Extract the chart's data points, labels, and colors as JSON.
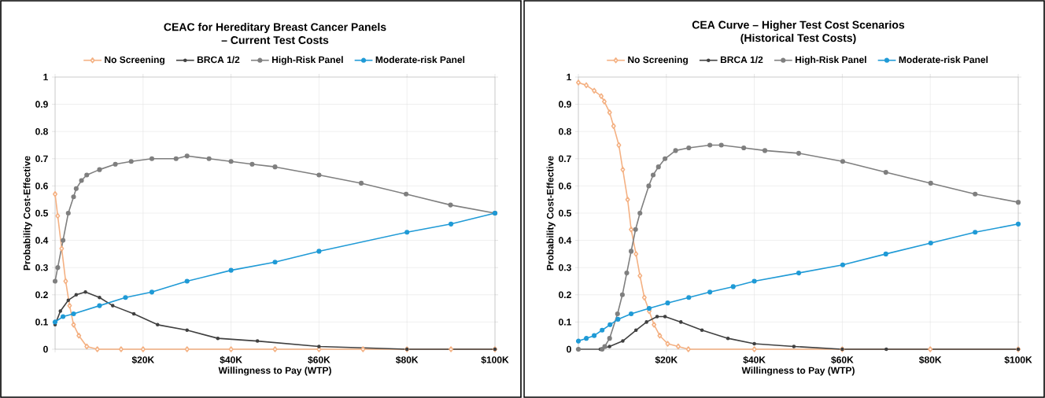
{
  "chart_data": [
    {
      "type": "line",
      "title": "CEAC for Hereditary Breast Cancer Panels",
      "subtitle": "– Current Test Costs",
      "xlabel": "Willingness to Pay (WTP)",
      "ylabel": "Probability Cost-Effective",
      "xlim": [
        0,
        100000
      ],
      "ylim": [
        0,
        1
      ],
      "xticks": [
        {
          "value": 0,
          "label": null
        },
        {
          "value": 20000,
          "label": "$20K"
        },
        {
          "value": 40000,
          "label": "$40K"
        },
        {
          "value": 60000,
          "label": "$60K"
        },
        {
          "value": 80000,
          "label": "$80K"
        },
        {
          "value": 100000,
          "label": "$100K"
        }
      ],
      "yticks": [
        0,
        0.1,
        0.2,
        0.3,
        0.4,
        0.5,
        0.6,
        0.7,
        0.8,
        0.9,
        1
      ],
      "grid": true,
      "legend": "top",
      "series": [
        {
          "name": "No Screening",
          "color": "#f4b183",
          "marker": "diamond",
          "x": [
            0,
            600,
            1500,
            2400,
            3300,
            4200,
            5400,
            7200,
            9600,
            15000,
            20000,
            30000,
            40000,
            50000,
            60000,
            70000,
            80000,
            90000,
            100000
          ],
          "values": [
            0.57,
            0.49,
            0.37,
            0.25,
            0.16,
            0.09,
            0.05,
            0.01,
            0,
            0,
            0,
            0,
            0,
            0,
            0,
            0,
            0,
            0,
            0
          ]
        },
        {
          "name": "BRCA 1/2",
          "color": "#404040",
          "marker": "circle",
          "x": [
            0,
            1200,
            3000,
            4800,
            6900,
            10100,
            13100,
            17900,
            23300,
            30000,
            37000,
            46000,
            60000,
            80000,
            100000
          ],
          "values": [
            0.09,
            0.14,
            0.18,
            0.2,
            0.21,
            0.19,
            0.16,
            0.13,
            0.09,
            0.07,
            0.04,
            0.03,
            0.01,
            0,
            0
          ]
        },
        {
          "name": "High-Risk Panel",
          "color": "#7f7f7f",
          "marker": "circle",
          "x": [
            0,
            600,
            1800,
            3000,
            4200,
            4800,
            6000,
            7200,
            10100,
            13700,
            17300,
            22000,
            27500,
            30000,
            35000,
            40000,
            44800,
            50000,
            60000,
            69600,
            79800,
            89900,
            100000
          ],
          "values": [
            0.25,
            0.3,
            0.4,
            0.5,
            0.56,
            0.59,
            0.62,
            0.64,
            0.66,
            0.68,
            0.69,
            0.7,
            0.7,
            0.71,
            0.7,
            0.69,
            0.68,
            0.67,
            0.64,
            0.61,
            0.57,
            0.53,
            0.5
          ]
        },
        {
          "name": "Moderate-risk Panel",
          "color": "#1f9ad6",
          "marker": "circle",
          "x": [
            0,
            1800,
            4200,
            10100,
            16000,
            22000,
            30000,
            40000,
            50000,
            60000,
            80000,
            90000,
            100000
          ],
          "values": [
            0.1,
            0.12,
            0.13,
            0.16,
            0.19,
            0.21,
            0.25,
            0.29,
            0.32,
            0.36,
            0.43,
            0.46,
            0.5
          ]
        }
      ]
    },
    {
      "type": "line",
      "title": "CEA Curve – Higher Test Cost Scenarios",
      "subtitle": "(Historical Test Costs)",
      "xlabel": "Willingness to Pay (WTP)",
      "ylabel": "Probability Cost-Effective",
      "xlim": [
        0,
        100000
      ],
      "ylim": [
        0,
        1
      ],
      "xticks": [
        {
          "value": 0,
          "label": null
        },
        {
          "value": 20000,
          "label": "$20K"
        },
        {
          "value": 40000,
          "label": "$40K"
        },
        {
          "value": 60000,
          "label": "$60K"
        },
        {
          "value": 80000,
          "label": "$80K"
        },
        {
          "value": 100000,
          "label": "$100K"
        }
      ],
      "yticks": [
        0,
        0.1,
        0.2,
        0.3,
        0.4,
        0.5,
        0.6,
        0.7,
        0.8,
        0.9,
        1
      ],
      "grid": true,
      "legend": "top",
      "series": [
        {
          "name": "No Screening",
          "color": "#f4b183",
          "marker": "diamond",
          "x": [
            0,
            1800,
            3600,
            5200,
            5900,
            7100,
            8000,
            9200,
            10100,
            11200,
            12000,
            13100,
            14000,
            15000,
            16100,
            17200,
            18500,
            20300,
            22700,
            25000,
            40000,
            60000,
            80000,
            100000
          ],
          "values": [
            0.98,
            0.97,
            0.95,
            0.93,
            0.91,
            0.87,
            0.82,
            0.75,
            0.66,
            0.55,
            0.44,
            0.35,
            0.27,
            0.19,
            0.14,
            0.09,
            0.05,
            0.02,
            0.01,
            0,
            0,
            0,
            0,
            0
          ]
        },
        {
          "name": "BRCA 1/2",
          "color": "#404040",
          "marker": "circle",
          "x": [
            0,
            5000,
            7100,
            10100,
            13100,
            15500,
            17900,
            19700,
            23300,
            28100,
            34000,
            40000,
            49000,
            60000,
            70000,
            100000
          ],
          "values": [
            0,
            0,
            0.01,
            0.03,
            0.07,
            0.1,
            0.12,
            0.12,
            0.1,
            0.07,
            0.04,
            0.02,
            0.01,
            0,
            0,
            0
          ]
        },
        {
          "name": "High-Risk Panel",
          "color": "#7f7f7f",
          "marker": "circle",
          "x": [
            0,
            5400,
            6000,
            7100,
            8900,
            10000,
            11000,
            12000,
            13000,
            14000,
            16000,
            17000,
            18200,
            19700,
            22100,
            25100,
            29900,
            32500,
            37600,
            42400,
            50100,
            60100,
            69900,
            80100,
            90200,
            100000
          ],
          "values": [
            0,
            0,
            0.01,
            0.04,
            0.13,
            0.2,
            0.28,
            0.36,
            0.44,
            0.5,
            0.6,
            0.64,
            0.67,
            0.7,
            0.73,
            0.74,
            0.75,
            0.75,
            0.74,
            0.73,
            0.72,
            0.69,
            0.65,
            0.61,
            0.57,
            0.54
          ]
        },
        {
          "name": "Moderate-risk Panel",
          "color": "#1f9ad6",
          "marker": "circle",
          "x": [
            0,
            1800,
            3600,
            5400,
            7200,
            9000,
            12000,
            16100,
            20300,
            25100,
            29900,
            35200,
            40000,
            50100,
            60100,
            69900,
            80100,
            90200,
            100000
          ],
          "values": [
            0.03,
            0.04,
            0.05,
            0.07,
            0.09,
            0.11,
            0.13,
            0.15,
            0.17,
            0.19,
            0.21,
            0.23,
            0.25,
            0.28,
            0.31,
            0.35,
            0.39,
            0.43,
            0.46
          ]
        }
      ]
    }
  ]
}
